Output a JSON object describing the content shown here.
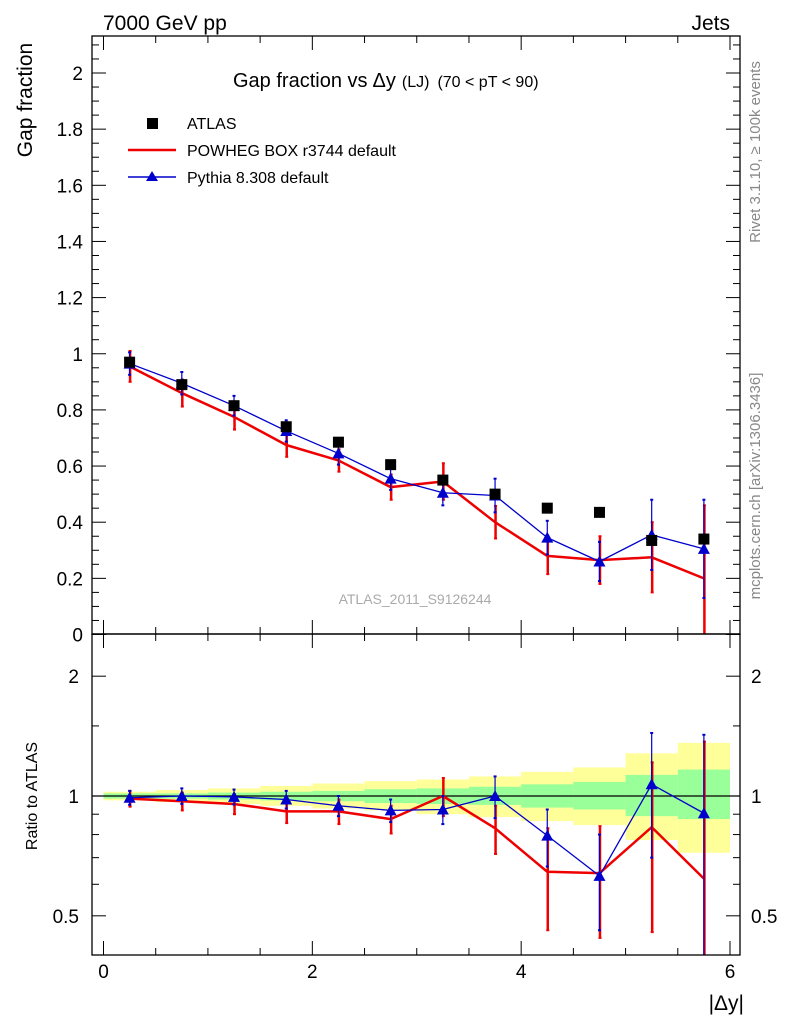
{
  "header": {
    "left_label": "7000 GeV pp",
    "right_label": "Jets"
  },
  "side_labels": {
    "top": "Rivet 3.1.10, ≥ 100k events",
    "bottom": "mcplots.cern.ch [arXiv:1306.3436]"
  },
  "chart_data": [
    {
      "panel": "main",
      "type": "line",
      "title_main": "Gap fraction vs",
      "title_delta": "Δy",
      "title_lj": "(LJ)",
      "title_range": "(70 < pT <  90)",
      "ylabel": "Gap fraction",
      "xlabel": "|Δy|",
      "xlim": [
        -0.1,
        6.1
      ],
      "ylim": [
        0,
        2.15
      ],
      "yticks": [
        0,
        0.2,
        0.4,
        0.6,
        0.8,
        1,
        1.2,
        1.4,
        1.6,
        1.8,
        2
      ],
      "ytick_labels": [
        "0",
        "0.2",
        "0.4",
        "0.6",
        "0.8",
        "1",
        "1.2",
        "1.4",
        "1.6",
        "1.8",
        "2"
      ],
      "watermark": "ATLAS_2011_S9126244",
      "legend": {
        "position": "top-left",
        "entries": [
          "ATLAS",
          "POWHEG BOX r3744 default",
          "Pythia 8.308 default"
        ]
      },
      "x": [
        0.25,
        0.75,
        1.25,
        1.75,
        2.25,
        2.75,
        3.25,
        3.75,
        4.25,
        4.75,
        5.25,
        5.75
      ],
      "series": [
        {
          "name": "ATLAS",
          "color": "#000000",
          "marker": "square",
          "values": [
            0.97,
            0.89,
            0.815,
            0.74,
            0.685,
            0.605,
            0.55,
            0.5,
            0.45,
            0.435,
            0.335,
            0.34
          ]
        },
        {
          "name": "POWHEG BOX r3744 default",
          "color": "#ee0000",
          "marker": "none",
          "values": [
            0.955,
            0.86,
            0.775,
            0.675,
            0.62,
            0.525,
            0.545,
            0.4,
            0.28,
            0.265,
            0.275,
            0.2
          ],
          "err": [
            0.055,
            0.048,
            0.045,
            0.042,
            0.04,
            0.045,
            0.065,
            0.058,
            0.065,
            0.085,
            0.125,
            0.26
          ]
        },
        {
          "name": "Pythia 8.308 default",
          "color": "#0000cc",
          "marker": "triangle",
          "values": [
            0.965,
            0.895,
            0.815,
            0.725,
            0.645,
            0.555,
            0.505,
            0.495,
            0.345,
            0.26,
            0.355,
            0.305
          ],
          "err": [
            0.04,
            0.04,
            0.035,
            0.038,
            0.04,
            0.04,
            0.045,
            0.06,
            0.06,
            0.07,
            0.125,
            0.175
          ]
        }
      ]
    },
    {
      "panel": "ratio",
      "type": "line",
      "ylabel": "Ratio to ATLAS",
      "scale": "log",
      "ylim": [
        0.42,
        2.45
      ],
      "yticks": [
        0.5,
        1,
        2
      ],
      "ytick_labels": [
        "0.5",
        "1",
        "2"
      ],
      "xticks": [
        0,
        2,
        4,
        6
      ],
      "xtick_labels": [
        "0",
        "2",
        "4",
        "6"
      ],
      "x": [
        0.25,
        0.75,
        1.25,
        1.75,
        2.25,
        2.75,
        3.25,
        3.75,
        4.25,
        4.75,
        5.25,
        5.75
      ],
      "bin_edges": [
        0,
        0.5,
        1,
        1.5,
        2,
        2.5,
        3,
        3.5,
        4,
        4.5,
        5,
        5.5,
        6
      ],
      "band_inner": {
        "color": "#99ff99",
        "lo": [
          0.985,
          0.985,
          0.98,
          0.975,
          0.97,
          0.96,
          0.955,
          0.95,
          0.935,
          0.925,
          0.89,
          0.875
        ],
        "hi": [
          1.015,
          1.015,
          1.02,
          1.025,
          1.03,
          1.04,
          1.045,
          1.055,
          1.07,
          1.085,
          1.13,
          1.165
        ]
      },
      "band_outer": {
        "color": "#ffff99",
        "lo": [
          0.975,
          0.965,
          0.955,
          0.945,
          0.93,
          0.92,
          0.9,
          0.885,
          0.865,
          0.845,
          0.775,
          0.72
        ],
        "hi": [
          1.025,
          1.035,
          1.045,
          1.06,
          1.075,
          1.09,
          1.1,
          1.12,
          1.15,
          1.18,
          1.28,
          1.36
        ]
      },
      "series": [
        {
          "name": "POWHEG BOX r3744 default",
          "color": "#ee0000",
          "values": [
            0.985,
            0.97,
            0.955,
            0.915,
            0.915,
            0.875,
            1.0,
            0.83,
            0.645,
            0.64,
            0.835,
            0.62
          ],
          "err": [
            0.045,
            0.05,
            0.055,
            0.06,
            0.065,
            0.07,
            0.11,
            0.115,
            0.185,
            0.2,
            0.38,
            0.75
          ]
        },
        {
          "name": "Pythia 8.308 default",
          "color": "#0000cc",
          "values": [
            0.99,
            1.0,
            0.995,
            0.98,
            0.945,
            0.92,
            0.925,
            1.0,
            0.795,
            0.63,
            1.07,
            0.905
          ],
          "err": [
            0.04,
            0.045,
            0.043,
            0.05,
            0.055,
            0.06,
            0.075,
            0.12,
            0.13,
            0.17,
            0.37,
            0.52
          ]
        }
      ]
    }
  ]
}
